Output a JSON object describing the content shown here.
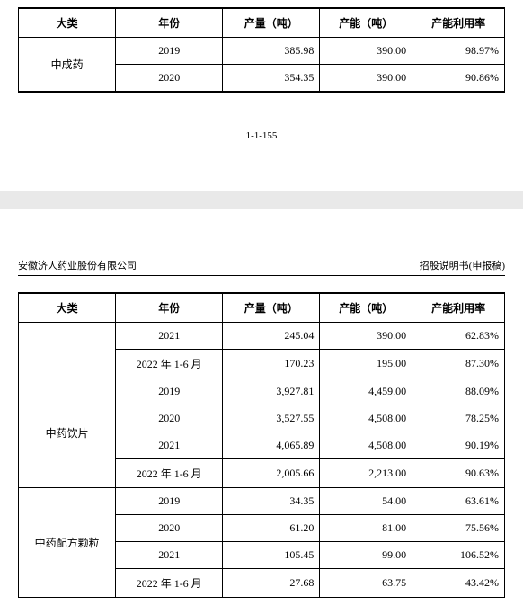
{
  "headers": {
    "category": "大类",
    "year": "年份",
    "production": "产量（吨）",
    "capacity": "产能（吨）",
    "utilization": "产能利用率"
  },
  "top_table": {
    "rows": [
      {
        "category": "中成药",
        "year": "2019",
        "production": "385.98",
        "capacity": "390.00",
        "utilization": "98.97%"
      },
      {
        "year": "2020",
        "production": "354.35",
        "capacity": "390.00",
        "utilization": "90.86%"
      }
    ],
    "category_rowspan": 2
  },
  "page_marker": "1-1-155",
  "doc_header": {
    "left": "安徽济人药业股份有限公司",
    "right": "招股说明书(申报稿)"
  },
  "main_table": {
    "groups": [
      {
        "category": "",
        "rows": [
          {
            "year": "2021",
            "production": "245.04",
            "capacity": "390.00",
            "utilization": "62.83%"
          },
          {
            "year": "2022 年 1-6 月",
            "production": "170.23",
            "capacity": "195.00",
            "utilization": "87.30%"
          }
        ]
      },
      {
        "category": "中药饮片",
        "rows": [
          {
            "year": "2019",
            "production": "3,927.81",
            "capacity": "4,459.00",
            "utilization": "88.09%"
          },
          {
            "year": "2020",
            "production": "3,527.55",
            "capacity": "4,508.00",
            "utilization": "78.25%"
          },
          {
            "year": "2021",
            "production": "4,065.89",
            "capacity": "4,508.00",
            "utilization": "90.19%"
          },
          {
            "year": "2022 年 1-6 月",
            "production": "2,005.66",
            "capacity": "2,213.00",
            "utilization": "90.63%"
          }
        ]
      },
      {
        "category": "中药配方颗粒",
        "rows": [
          {
            "year": "2019",
            "production": "34.35",
            "capacity": "54.00",
            "utilization": "63.61%"
          },
          {
            "year": "2020",
            "production": "61.20",
            "capacity": "81.00",
            "utilization": "75.56%"
          },
          {
            "year": "2021",
            "production": "105.45",
            "capacity": "99.00",
            "utilization": "106.52%"
          },
          {
            "year": "2022 年 1-6 月",
            "production": "27.68",
            "capacity": "63.75",
            "utilization": "43.42%"
          }
        ]
      }
    ]
  }
}
